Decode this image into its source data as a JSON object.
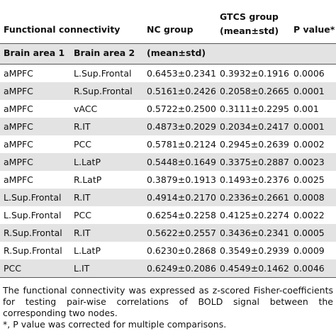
{
  "header": {
    "connectivity": "Functional connectivity",
    "nc_group": "NC group",
    "gtcs_group": "GTCS group",
    "gtcs_unit": "(mean±std)",
    "p_value": "P value*"
  },
  "subheader": {
    "area1": "Brain area 1",
    "area2": "Brain area 2",
    "nc_unit": "(mean±std)"
  },
  "rows": [
    [
      "aMPFC",
      "L.Sup.Frontal",
      "0.6453±0.2341",
      "0.3932±0.1916",
      "0.0006"
    ],
    [
      "aMPFC",
      "R.Sup.Frontal",
      "0.5161±0.2426",
      "0.2058±0.2665",
      "0.0001"
    ],
    [
      "aMPFC",
      "vACC",
      "0.5722±0.2500",
      "0.3111±0.2295",
      "0.001"
    ],
    [
      "aMPFC",
      "R.IT",
      "0.4873±0.2029",
      "0.2034±0.2417",
      "0.0001"
    ],
    [
      "aMPFC",
      "PCC",
      "0.5781±0.2124",
      "0.2945±0.2639",
      "0.0002"
    ],
    [
      "aMPFC",
      "L.LatP",
      "0.5448±0.1649",
      "0.3375±0.2887",
      "0.0023"
    ],
    [
      "aMPFC",
      "R.LatP",
      "0.3879±0.1913",
      "0.1493±0.2376",
      "0.0025"
    ],
    [
      "L.Sup.Frontal",
      "R.IT",
      "0.4914±0.2170",
      "0.2336±0.2661",
      "0.0008"
    ],
    [
      "L.Sup.Frontal",
      "PCC",
      "0.6254±0.2258",
      "0.4125±0.2274",
      "0.0022"
    ],
    [
      "R.Sup.Frontal",
      "R.IT",
      "0.5622±0.2557",
      "0.3436±0.2341",
      "0.0005"
    ],
    [
      "R.Sup.Frontal",
      "L.LatP",
      "0.6230±0.2868",
      "0.3549±0.2939",
      "0.0009"
    ],
    [
      "PCC",
      "L.IT",
      "0.6249±0.2086",
      "0.4549±0.1462",
      "0.0046"
    ]
  ],
  "footnotes": [
    "The functional connectivity was expressed as z-scored Fisher-coefficients for testing pair-wise correlations of BOLD signal between the corresponding two nodes.",
    "*, P value was corrected for multiple comparisons."
  ]
}
